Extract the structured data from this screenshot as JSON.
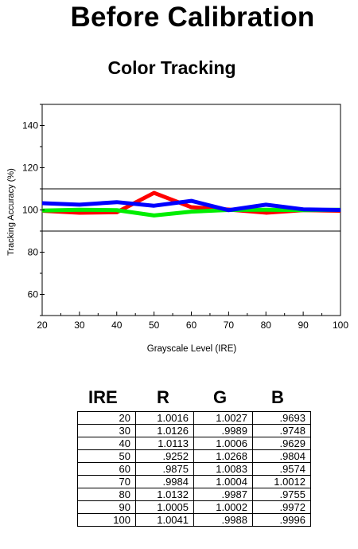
{
  "title": "Before Calibration",
  "subtitle": "Color Tracking",
  "chart_data": {
    "type": "line",
    "xlabel": "Grayscale Level (IRE)",
    "ylabel": "Tracking Accuracy (%)",
    "x": [
      20,
      30,
      40,
      50,
      60,
      70,
      80,
      90,
      100
    ],
    "xlim": [
      20,
      100
    ],
    "ylim": [
      50,
      150
    ],
    "xticks": [
      "20",
      "30",
      "40",
      "50",
      "60",
      "70",
      "80",
      "90",
      "100"
    ],
    "yticks": [
      "60",
      "80",
      "100",
      "120",
      "140"
    ],
    "reference_lines": [
      90,
      110
    ],
    "grid": false,
    "legend": "none",
    "series": [
      {
        "color": "#ff0000",
        "values": [
          99.6,
          98.7,
          98.9,
          108.1,
          101.3,
          100.2,
          98.7,
          99.9,
          99.6
        ]
      },
      {
        "color": "#00ee00",
        "values": [
          99.7,
          100.1,
          99.9,
          97.4,
          99.2,
          100.0,
          100.1,
          99.9,
          100.1
        ]
      },
      {
        "color": "#0000ff",
        "values": [
          103.2,
          102.5,
          103.7,
          102.0,
          104.3,
          99.9,
          102.5,
          100.3,
          100.0
        ]
      }
    ]
  },
  "table": {
    "headers": [
      "IRE",
      "R",
      "G",
      "B"
    ],
    "rows": [
      [
        "20",
        "1.0016",
        "1.0027",
        ".9693"
      ],
      [
        "30",
        "1.0126",
        ".9989",
        ".9748"
      ],
      [
        "40",
        "1.0113",
        "1.0006",
        ".9629"
      ],
      [
        "50",
        ".9252",
        "1.0268",
        ".9804"
      ],
      [
        "60",
        ".9875",
        "1.0083",
        ".9574"
      ],
      [
        "70",
        ".9984",
        "1.0004",
        "1.0012"
      ],
      [
        "80",
        "1.0132",
        ".9987",
        ".9755"
      ],
      [
        "90",
        "1.0005",
        "1.0002",
        ".9972"
      ],
      [
        "100",
        "1.0041",
        ".9988",
        ".9996"
      ]
    ]
  }
}
